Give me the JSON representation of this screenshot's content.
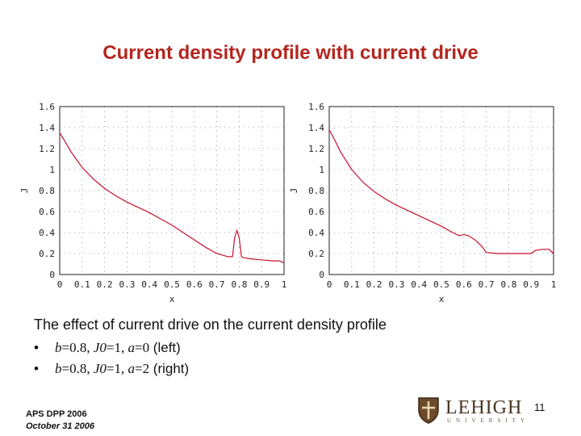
{
  "title": "Current density profile with current drive",
  "caption": "The effect of current drive on the current density profile",
  "bullets": [
    {
      "marker": "•",
      "b": "b",
      "b_val": "=0.8, ",
      "J0": "J0",
      "J0_val": "=1, ",
      "a": "a",
      "a_val": "=0",
      "note": " (left)"
    },
    {
      "marker": "•",
      "b": "b",
      "b_val": "=0.8, ",
      "J0": "J0",
      "J0_val": "=1, ",
      "a": "a",
      "a_val": "=2",
      "note": " (right)"
    }
  ],
  "footer": {
    "line1": "APS DPP 2006",
    "line2": "October 31 2006"
  },
  "page_number": "11",
  "logo": {
    "word": "LEHIGH",
    "sub": "UNIVERSITY"
  },
  "colors": {
    "title": "#b3261e",
    "curve": "#c8102e",
    "logo": "#4a3520"
  },
  "chart_data": [
    {
      "type": "line",
      "xlabel": "x",
      "ylabel": "J",
      "xlim": [
        0,
        1
      ],
      "ylim": [
        0,
        1.6
      ],
      "grid": true,
      "x_ticks": [
        "0",
        "0.1",
        "0.2",
        "0.3",
        "0.4",
        "0.5",
        "0.6",
        "0.7",
        "0.8",
        "0.9",
        "1"
      ],
      "y_ticks": [
        "0",
        "0.2",
        "0.4",
        "0.6",
        "0.8",
        "1",
        "1.2",
        "1.4",
        "1.6"
      ],
      "series": [
        {
          "x": [
            0,
            0.02,
            0.05,
            0.1,
            0.15,
            0.2,
            0.25,
            0.3,
            0.35,
            0.4,
            0.45,
            0.5,
            0.55,
            0.6,
            0.65,
            0.7,
            0.75,
            0.77,
            0.78,
            0.79,
            0.8,
            0.81,
            0.82,
            0.85,
            0.9,
            0.95,
            0.98,
            1.0
          ],
          "y": [
            1.35,
            1.28,
            1.17,
            1.02,
            0.91,
            0.82,
            0.75,
            0.69,
            0.64,
            0.59,
            0.53,
            0.47,
            0.4,
            0.33,
            0.26,
            0.2,
            0.17,
            0.17,
            0.35,
            0.42,
            0.35,
            0.17,
            0.16,
            0.15,
            0.14,
            0.13,
            0.13,
            0.11
          ]
        }
      ]
    },
    {
      "type": "line",
      "xlabel": "x",
      "ylabel": "J",
      "xlim": [
        0,
        1
      ],
      "ylim": [
        0,
        1.6
      ],
      "grid": true,
      "x_ticks": [
        "0",
        "0.1",
        "0.2",
        "0.3",
        "0.4",
        "0.5",
        "0.6",
        "0.7",
        "0.8",
        "0.9",
        "1"
      ],
      "y_ticks": [
        "0",
        "0.2",
        "0.4",
        "0.6",
        "0.8",
        "1",
        "1.2",
        "1.4",
        "1.6"
      ],
      "series": [
        {
          "x": [
            0,
            0.02,
            0.05,
            0.1,
            0.15,
            0.2,
            0.25,
            0.3,
            0.35,
            0.4,
            0.45,
            0.5,
            0.55,
            0.58,
            0.6,
            0.62,
            0.65,
            0.68,
            0.7,
            0.75,
            0.8,
            0.85,
            0.9,
            0.92,
            0.95,
            0.98,
            1.0
          ],
          "y": [
            1.38,
            1.3,
            1.17,
            1.0,
            0.88,
            0.79,
            0.72,
            0.66,
            0.61,
            0.56,
            0.51,
            0.46,
            0.4,
            0.37,
            0.38,
            0.37,
            0.33,
            0.27,
            0.21,
            0.2,
            0.2,
            0.2,
            0.2,
            0.23,
            0.24,
            0.24,
            0.2
          ]
        }
      ]
    }
  ]
}
